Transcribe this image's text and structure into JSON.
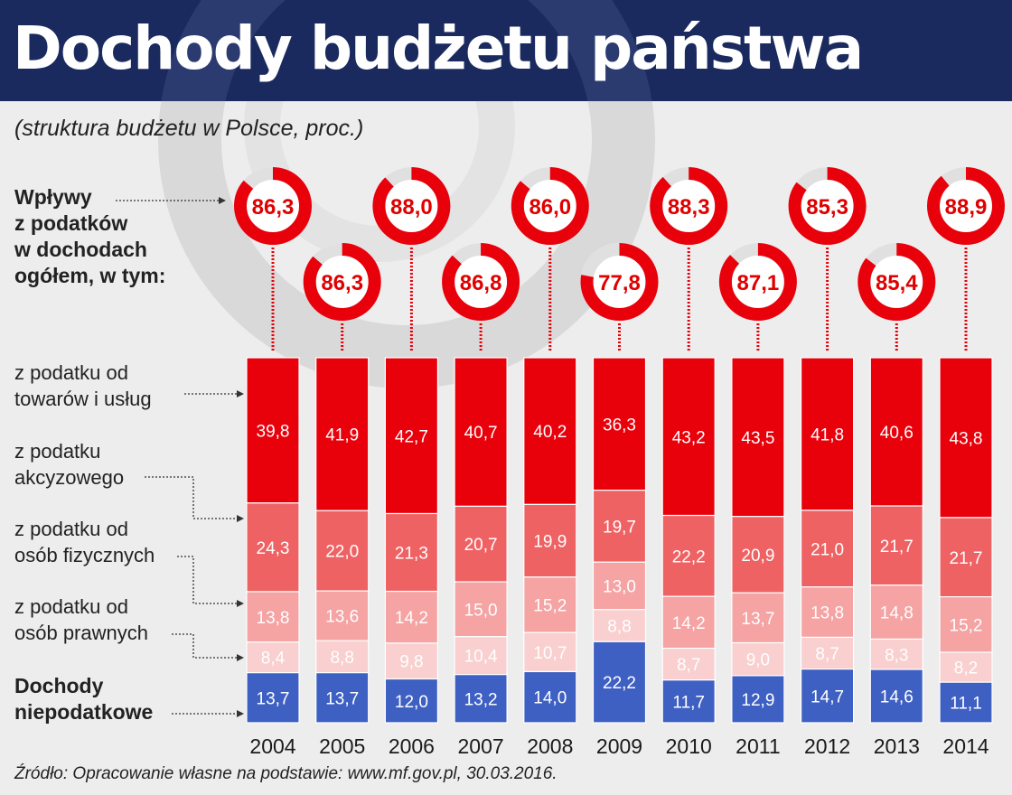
{
  "header": {
    "title": "Dochody budżetu państwa"
  },
  "subtitle": "(struktura budżetu w Polsce, proc.)",
  "labels": {
    "tax_share": [
      "Wpływy",
      "z podatków",
      "w dochodach",
      "ogółem, w tym:"
    ],
    "vat": [
      "z podatku od",
      "towarów i usług"
    ],
    "excise": [
      "z podatku",
      "akcyzowego"
    ],
    "pit": [
      "z podatku od",
      "osób fizycznych"
    ],
    "cit": [
      "z podatku od",
      "osób prawnych"
    ],
    "nontax": [
      "Dochody",
      "niepodatkowe"
    ]
  },
  "source": "Źródło: Opracowanie własne na podstawie: www.mf.gov.pl, 30.03.2016.",
  "colors": {
    "header_bg": "#1a2a5e",
    "vat": "#e8000b",
    "excise": "#ef6264",
    "pit": "#f5a3a3",
    "cit": "#f9cfcf",
    "nontax": "#3f60c3",
    "donut": "#e8000b",
    "donut_track": "#e0e0e0"
  },
  "chart_data": {
    "type": "bar",
    "stacked": true,
    "categories": [
      "2004",
      "2005",
      "2006",
      "2007",
      "2008",
      "2009",
      "2010",
      "2011",
      "2012",
      "2013",
      "2014"
    ],
    "series": [
      {
        "name": "z podatku od towarów i usług",
        "values": [
          "39,8",
          "41,9",
          "42,7",
          "40,7",
          "40,2",
          "36,3",
          "43,2",
          "43,5",
          "41,8",
          "40,6",
          "43,8"
        ]
      },
      {
        "name": "z podatku akcyzowego",
        "values": [
          "24,3",
          "22,0",
          "21,3",
          "20,7",
          "19,9",
          "19,7",
          "22,2",
          "20,9",
          "21,0",
          "21,7",
          "21,7"
        ]
      },
      {
        "name": "z podatku od osób fizycznych",
        "values": [
          "13,8",
          "13,6",
          "14,2",
          "15,0",
          "15,2",
          "13,0",
          "14,2",
          "13,7",
          "13,8",
          "14,8",
          "15,2"
        ]
      },
      {
        "name": "z podatku od osób prawnych",
        "values": [
          "8,4",
          "8,8",
          "9,8",
          "10,4",
          "10,7",
          "8,8",
          "8,7",
          "9,0",
          "8,7",
          "8,3",
          "8,2"
        ]
      },
      {
        "name": "Dochody niepodatkowe",
        "values": [
          "13,7",
          "13,7",
          "12,0",
          "13,2",
          "14,0",
          "22,2",
          "11,7",
          "12,9",
          "14,7",
          "14,6",
          "11,1"
        ]
      }
    ],
    "tax_share": [
      "86,3",
      "86,3",
      "88,0",
      "86,8",
      "86,0",
      "77,8",
      "88,3",
      "87,1",
      "85,3",
      "85,4",
      "88,9"
    ],
    "ylim": [
      0,
      100
    ]
  }
}
